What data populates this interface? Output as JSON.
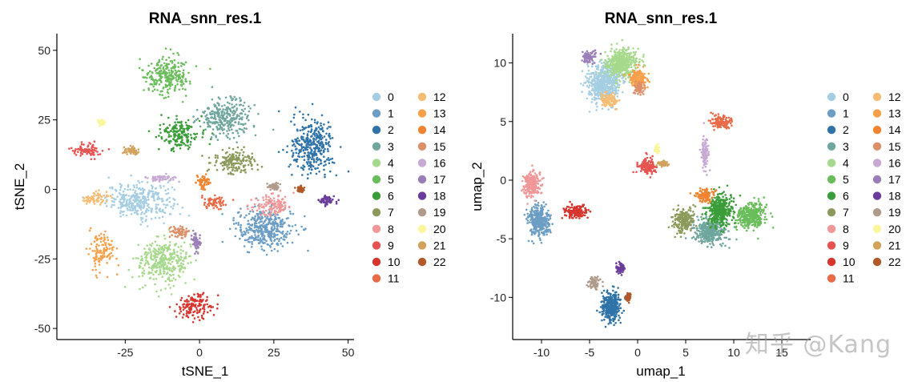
{
  "chart_data": [
    {
      "type": "scatter",
      "title": "RNA_snn_res.1",
      "xlabel": "tSNE_1",
      "ylabel": "tSNE_2",
      "xlim": [
        -48,
        52
      ],
      "ylim": [
        -54,
        56
      ],
      "xticks": [
        -25,
        0,
        25,
        50
      ],
      "yticks": [
        -50,
        -25,
        0,
        25,
        50
      ],
      "xtick_labels": [
        "-25",
        "0",
        "25",
        "50"
      ],
      "ytick_labels": [
        "-50",
        "-25",
        "0",
        "25",
        "50"
      ],
      "legend_position": "right",
      "clusters": [
        {
          "label": "0",
          "center": [
            -20,
            -4
          ],
          "spread": [
            10,
            5.5
          ]
        },
        {
          "label": "1",
          "center": [
            22,
            -14
          ],
          "spread": [
            9,
            7
          ]
        },
        {
          "label": "2",
          "center": [
            38,
            15
          ],
          "spread": [
            6.5,
            9
          ]
        },
        {
          "label": "3",
          "center": [
            9,
            26
          ],
          "spread": [
            8,
            6
          ]
        },
        {
          "label": "4",
          "center": [
            -12,
            -26
          ],
          "spread": [
            8,
            7
          ]
        },
        {
          "label": "5",
          "center": [
            -11,
            41
          ],
          "spread": [
            7,
            6
          ]
        },
        {
          "label": "6",
          "center": [
            -7,
            20
          ],
          "spread": [
            6,
            5
          ]
        },
        {
          "label": "7",
          "center": [
            12,
            10
          ],
          "spread": [
            7,
            4
          ]
        },
        {
          "label": "8",
          "center": [
            25,
            -6
          ],
          "spread": [
            6,
            3.5
          ]
        },
        {
          "label": "9",
          "center": [
            -38,
            14
          ],
          "spread": [
            5,
            2.5
          ]
        },
        {
          "label": "10",
          "center": [
            -2,
            -42
          ],
          "spread": [
            6,
            4
          ]
        },
        {
          "label": "11",
          "center": [
            5,
            -5
          ],
          "spread": [
            4,
            2.5
          ]
        },
        {
          "label": "12",
          "center": [
            -35,
            -3
          ],
          "spread": [
            4,
            2
          ]
        },
        {
          "label": "13",
          "center": [
            -33,
            -22
          ],
          "spread": [
            4,
            5
          ]
        },
        {
          "label": "14",
          "center": [
            1,
            3
          ],
          "spread": [
            2.5,
            2
          ]
        },
        {
          "label": "15",
          "center": [
            -7,
            -15
          ],
          "spread": [
            3,
            2
          ]
        },
        {
          "label": "16",
          "center": [
            -13,
            4
          ],
          "spread": [
            4,
            1
          ]
        },
        {
          "label": "17",
          "center": [
            -1,
            -19
          ],
          "spread": [
            1.5,
            3
          ]
        },
        {
          "label": "18",
          "center": [
            43,
            -4
          ],
          "spread": [
            2.5,
            1.5
          ]
        },
        {
          "label": "19",
          "center": [
            25,
            1
          ],
          "spread": [
            2,
            1
          ]
        },
        {
          "label": "20",
          "center": [
            -33,
            24
          ],
          "spread": [
            1,
            1
          ]
        },
        {
          "label": "21",
          "center": [
            -23,
            14
          ],
          "spread": [
            2.5,
            1
          ]
        },
        {
          "label": "22",
          "center": [
            34,
            0
          ],
          "spread": [
            1,
            1
          ]
        }
      ]
    },
    {
      "type": "scatter",
      "title": "RNA_snn_res.1",
      "xlabel": "umap_1",
      "ylabel": "umap_2",
      "xlim": [
        -13,
        18
      ],
      "ylim": [
        -13.6,
        12.5
      ],
      "xticks": [
        -10,
        -5,
        0,
        5,
        10,
        15
      ],
      "yticks": [
        -10,
        -5,
        0,
        5,
        10
      ],
      "xtick_labels": [
        "-10",
        "-5",
        "0",
        "5",
        "10",
        "15"
      ],
      "ytick_labels": [
        "-10",
        "-5",
        "0",
        "5",
        "10"
      ],
      "legend_position": "right",
      "clusters": [
        {
          "label": "0",
          "center": [
            -3.5,
            8.2
          ],
          "spread": [
            1.5,
            1.5
          ]
        },
        {
          "label": "1",
          "center": [
            -10.3,
            -3.5
          ],
          "spread": [
            1.1,
            1.2
          ]
        },
        {
          "label": "2",
          "center": [
            -2.8,
            -10.8
          ],
          "spread": [
            1.0,
            1.2
          ]
        },
        {
          "label": "3",
          "center": [
            7.5,
            -4.3
          ],
          "spread": [
            1.4,
            1.0
          ]
        },
        {
          "label": "4",
          "center": [
            -1.6,
            10.0
          ],
          "spread": [
            1.5,
            1.1
          ]
        },
        {
          "label": "5",
          "center": [
            11.8,
            -3.0
          ],
          "spread": [
            1.3,
            1.0
          ]
        },
        {
          "label": "6",
          "center": [
            8.5,
            -2.5
          ],
          "spread": [
            1.2,
            1.2
          ]
        },
        {
          "label": "7",
          "center": [
            4.8,
            -3.5
          ],
          "spread": [
            0.9,
            0.9
          ]
        },
        {
          "label": "8",
          "center": [
            -11.0,
            -0.3
          ],
          "spread": [
            0.8,
            1.0
          ]
        },
        {
          "label": "9",
          "center": [
            1.0,
            1.2
          ],
          "spread": [
            0.8,
            0.6
          ]
        },
        {
          "label": "10",
          "center": [
            -6.5,
            -2.7
          ],
          "spread": [
            1.1,
            0.5
          ]
        },
        {
          "label": "11",
          "center": [
            8.6,
            5.0
          ],
          "spread": [
            1.0,
            0.5
          ]
        },
        {
          "label": "12",
          "center": [
            -3.0,
            6.8
          ],
          "spread": [
            0.8,
            0.5
          ]
        },
        {
          "label": "13",
          "center": [
            0.0,
            8.7
          ],
          "spread": [
            0.8,
            0.8
          ]
        },
        {
          "label": "14",
          "center": [
            7.0,
            -1.3
          ],
          "spread": [
            0.9,
            0.5
          ]
        },
        {
          "label": "15",
          "center": [
            0.2,
            7.9
          ],
          "spread": [
            0.5,
            0.5
          ]
        },
        {
          "label": "16",
          "center": [
            7.0,
            2.3
          ],
          "spread": [
            0.3,
            1.3
          ]
        },
        {
          "label": "17",
          "center": [
            -5.0,
            10.5
          ],
          "spread": [
            0.6,
            0.5
          ]
        },
        {
          "label": "18",
          "center": [
            -1.8,
            -7.5
          ],
          "spread": [
            0.4,
            0.4
          ]
        },
        {
          "label": "19",
          "center": [
            -4.5,
            -8.8
          ],
          "spread": [
            0.5,
            0.5
          ]
        },
        {
          "label": "20",
          "center": [
            2.0,
            2.6
          ],
          "spread": [
            0.2,
            0.3
          ]
        },
        {
          "label": "21",
          "center": [
            2.7,
            1.4
          ],
          "spread": [
            0.5,
            0.2
          ]
        },
        {
          "label": "22",
          "center": [
            -1.0,
            -10.0
          ],
          "spread": [
            0.2,
            0.3
          ]
        }
      ]
    }
  ],
  "legend": {
    "labels": [
      "0",
      "1",
      "2",
      "3",
      "4",
      "5",
      "6",
      "7",
      "8",
      "9",
      "10",
      "11",
      "12",
      "13",
      "14",
      "15",
      "16",
      "17",
      "18",
      "19",
      "20",
      "21",
      "22"
    ],
    "colors": [
      "#A6CEE3",
      "#6C9EC5",
      "#2F73A8",
      "#6FA69E",
      "#A6D98B",
      "#6ABD5B",
      "#3A9D39",
      "#8B9A5A",
      "#F19797",
      "#E6524F",
      "#D6352D",
      "#E96A46",
      "#F6BC73",
      "#F7A04A",
      "#F08430",
      "#DB906A",
      "#C7A9D4",
      "#9B7EB7",
      "#6A3D9A",
      "#B09A8B",
      "#FAF69C",
      "#D0A25B",
      "#B15928"
    ]
  },
  "watermark": "知乎 @Kang"
}
